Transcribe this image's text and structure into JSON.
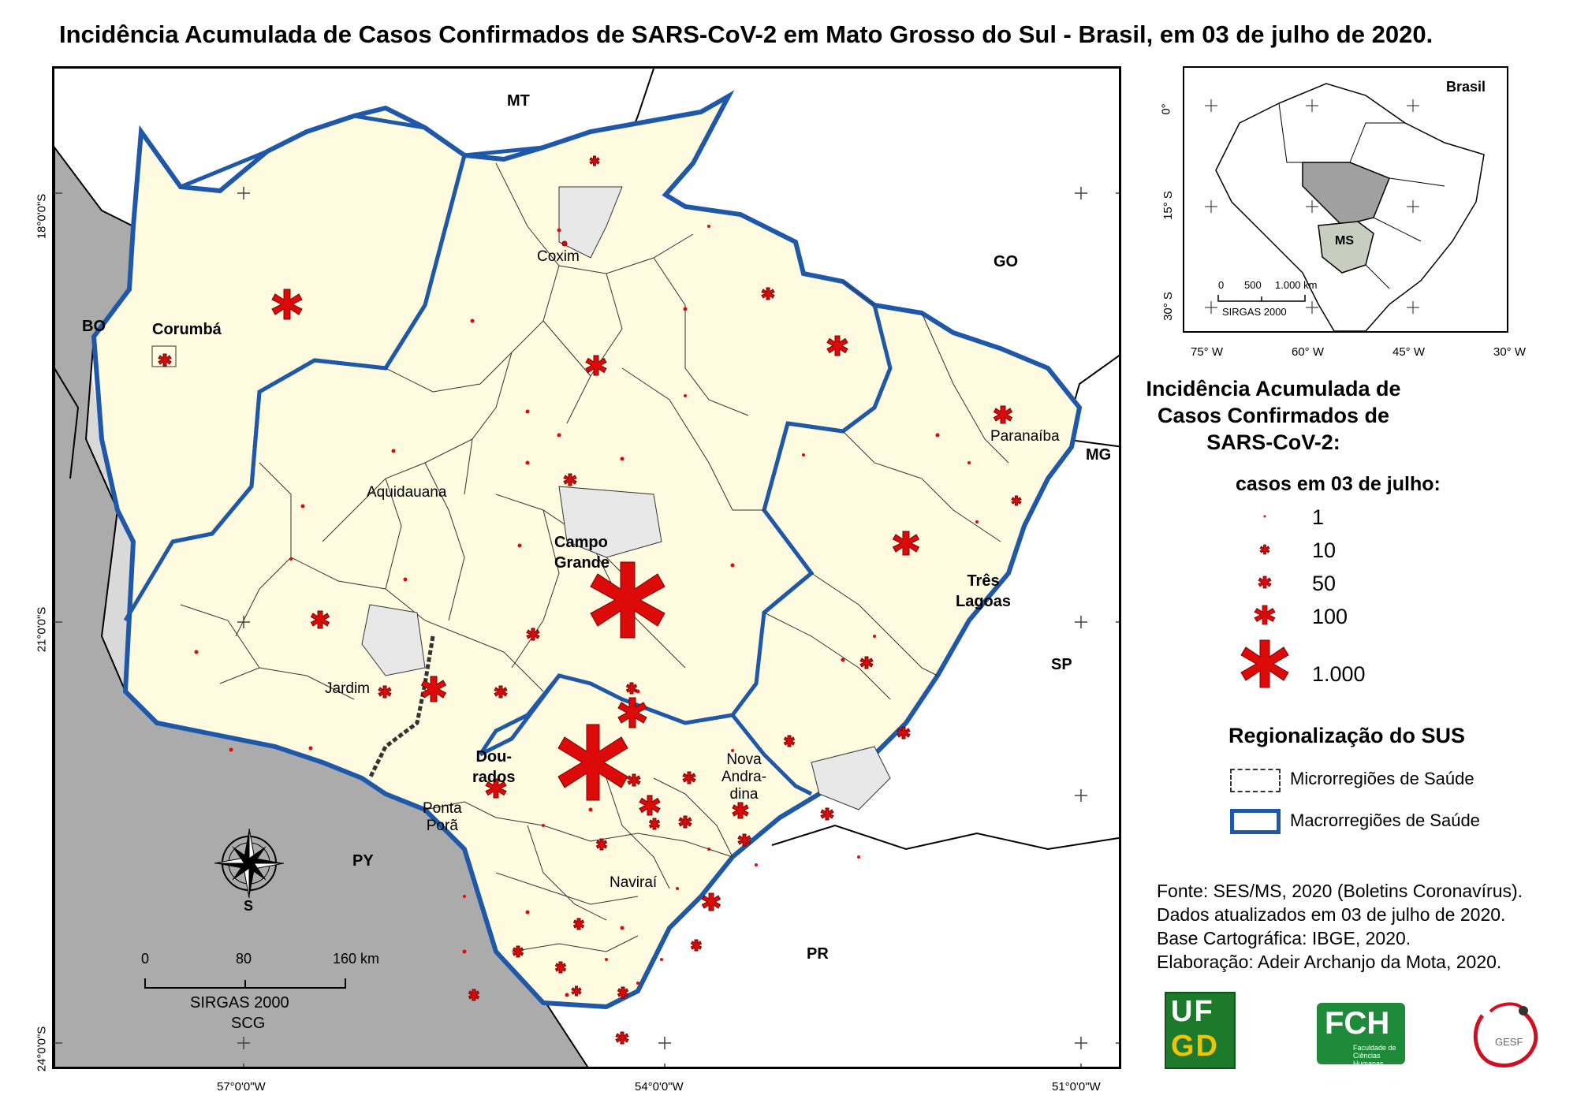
{
  "title": "Incidência Acumulada de Casos Confirmados de SARS-CoV-2 em Mato Grosso do Sul - Brasil, em 03 de julho de 2020.",
  "map": {
    "neighbors": {
      "mt": "MT",
      "go": "GO",
      "mg": "MG",
      "sp": "SP",
      "pr": "PR",
      "bo": "BO",
      "py": "PY"
    },
    "cities": {
      "corumba": "Corumbá",
      "coxim": "Coxim",
      "aquidauana": "Aquidauana",
      "campo_grande_1": "Campo",
      "campo_grande_2": "Grande",
      "paranaiba": "Paranaíba",
      "tres_lagoas_1": "Três",
      "tres_lagoas_2": "Lagoas",
      "jardim": "Jardim",
      "dourados_1": "Dou-",
      "dourados_2": "rados",
      "ponta_pora_1": "Ponta",
      "ponta_pora_2": "Porã",
      "nova_andradina_1": "Nova",
      "nova_andradina_2": "Andra-",
      "nova_andradina_3": "dina",
      "navirai": "Naviraí"
    },
    "lat_ticks": [
      "18°0'0\"S",
      "21°0'0\"S",
      "24°0'0\"S"
    ],
    "lon_ticks": [
      "57°0'0\"W",
      "54°0'0\"W",
      "51°0'0\"W"
    ],
    "compass_label": "S",
    "scale": {
      "t0": "0",
      "t1": "80",
      "t2": "160 km",
      "crs": "SIRGAS 2000",
      "proj": "SCG"
    },
    "colors": {
      "frame": "#000000",
      "outside": "#d9d9d9",
      "ms_fill": "#fffbe0",
      "macro_border": "#1f58a8",
      "symbol": "#dd0a0a",
      "symbol_stroke": "#7a0000"
    }
  },
  "inset": {
    "label": "Brasil",
    "ms_label": "MS",
    "lat_ticks": [
      "0°",
      "15° S",
      "30° S"
    ],
    "lon_ticks": [
      "75° W",
      "60° W",
      "45° W",
      "30° W"
    ],
    "scale": {
      "t0": "0",
      "t1": "500",
      "t2": "1.000 km",
      "crs": "SIRGAS 2000"
    }
  },
  "legend": {
    "title": "Incidência Acumulada de Casos Confirmados de SARS-CoV-2:",
    "title_lines": [
      "Incidência Acumulada de",
      "Casos Confirmados de",
      "SARS-CoV-2:"
    ],
    "subtitle": "casos em 03 de julho:",
    "items": [
      {
        "label": "1"
      },
      {
        "label": "10"
      },
      {
        "label": "50"
      },
      {
        "label": "100"
      },
      {
        "label": "1.000"
      }
    ],
    "regionalization_title": "Regionalização do SUS",
    "micro_label": "Microrregiões de Saúde",
    "macro_label": "Macrorregiões de Saúde"
  },
  "credits": [
    "Fonte: SES/MS, 2020 (Boletins Coronavírus).",
    "Dados atualizados em 03 de julho de 2020.",
    "Base Cartográfica: IBGE, 2020.",
    "Elaboração: Adeir Archanjo da Mota, 2020."
  ],
  "logos": {
    "ufgd_1": "UF",
    "ufgd_2": "GD",
    "fch": "FCH",
    "fch_sub_1": "Faculdade de",
    "fch_sub_2": "Ciências Humanas",
    "gesf": "GESF"
  }
}
